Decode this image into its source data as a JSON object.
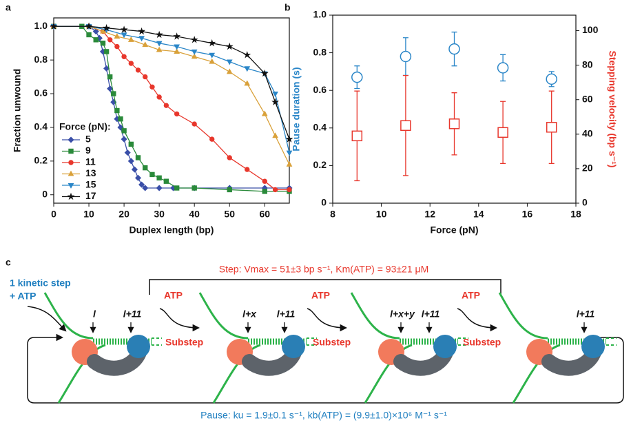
{
  "chart_data": [
    {
      "type": "line",
      "panel_label": "a",
      "xlabel": "Duplex length (bp)",
      "ylabel": "Fraction unwound",
      "xlim": [
        0,
        67
      ],
      "xticks": [
        0,
        10,
        20,
        30,
        40,
        50,
        60
      ],
      "ylim": [
        -0.05,
        1.05
      ],
      "yticks": [
        0,
        0.2,
        0.4,
        0.6,
        0.8,
        {
          "value": 1,
          "label": "1.0"
        }
      ],
      "legend_title": "Force (pN):",
      "legend": "lower-left",
      "series": [
        {
          "name": "5",
          "color": "#3a4fa8",
          "marker": "diamond",
          "x": [
            0,
            10,
            12,
            13,
            14,
            15,
            16,
            17,
            18,
            19,
            20,
            21,
            22,
            23,
            24,
            25,
            26,
            30,
            34,
            40,
            50,
            60,
            67
          ],
          "values": [
            1,
            1,
            0.97,
            0.93,
            0.85,
            0.75,
            0.63,
            0.55,
            0.45,
            0.4,
            0.33,
            0.25,
            0.2,
            0.15,
            0.1,
            0.06,
            0.04,
            0.04,
            0.04,
            0.04,
            0.04,
            0.04,
            0.04
          ]
        },
        {
          "name": "9",
          "color": "#2a8a3a",
          "marker": "square",
          "x": [
            0,
            8,
            10,
            12,
            14,
            15,
            16,
            17,
            18,
            19,
            20,
            22,
            24,
            26,
            28,
            30,
            32,
            35,
            40,
            50,
            60,
            67
          ],
          "values": [
            1,
            1,
            0.95,
            0.92,
            0.9,
            0.85,
            0.7,
            0.6,
            0.5,
            0.45,
            0.38,
            0.3,
            0.22,
            0.16,
            0.12,
            0.1,
            0.08,
            0.04,
            0.04,
            0.03,
            0.02,
            0.02
          ]
        },
        {
          "name": "11",
          "color": "#e8372c",
          "marker": "circle",
          "x": [
            0,
            10,
            14,
            16,
            18,
            20,
            22,
            24,
            26,
            28,
            30,
            32,
            35,
            40,
            45,
            50,
            55,
            60,
            63,
            67
          ],
          "values": [
            1,
            1,
            0.97,
            0.92,
            0.88,
            0.82,
            0.78,
            0.74,
            0.7,
            0.64,
            0.58,
            0.53,
            0.48,
            0.42,
            0.33,
            0.22,
            0.15,
            0.08,
            0.03,
            0.03
          ]
        },
        {
          "name": "13",
          "color": "#d9a13a",
          "marker": "triangle-up",
          "x": [
            0,
            10,
            14,
            18,
            22,
            26,
            30,
            35,
            40,
            45,
            50,
            55,
            60,
            63,
            67
          ],
          "values": [
            1,
            1,
            0.97,
            0.94,
            0.92,
            0.89,
            0.86,
            0.85,
            0.82,
            0.79,
            0.73,
            0.66,
            0.48,
            0.35,
            0.18
          ]
        },
        {
          "name": "15",
          "color": "#2a86c8",
          "marker": "triangle-down",
          "x": [
            0,
            10,
            15,
            20,
            25,
            30,
            35,
            40,
            45,
            50,
            55,
            60,
            63,
            67
          ],
          "values": [
            1,
            1,
            0.98,
            0.95,
            0.93,
            0.9,
            0.88,
            0.85,
            0.83,
            0.79,
            0.75,
            0.72,
            0.6,
            0.25
          ]
        },
        {
          "name": "17",
          "color": "#111111",
          "marker": "star",
          "x": [
            0,
            10,
            15,
            20,
            25,
            30,
            35,
            40,
            45,
            50,
            55,
            60,
            63,
            67
          ],
          "values": [
            1,
            1,
            0.99,
            0.98,
            0.97,
            0.95,
            0.94,
            0.92,
            0.9,
            0.88,
            0.83,
            0.72,
            0.55,
            0.33
          ]
        }
      ]
    },
    {
      "type": "scatter",
      "panel_label": "b",
      "xlabel": "Force (pN)",
      "ylabel": "Pause duration (s)",
      "ylabel_color": "#2a86c8",
      "y2label": "Stepping velocity (bp s⁻¹)",
      "y2label_color": "#e8372c",
      "xlim": [
        8,
        18
      ],
      "xticks": [
        8,
        10,
        12,
        14,
        16,
        18
      ],
      "ylim": [
        0,
        1
      ],
      "yticks": [
        0,
        0.2,
        0.4,
        0.6,
        0.8,
        {
          "value": 1,
          "label": "1.0"
        }
      ],
      "y2lim": [
        0,
        109
      ],
      "y2ticks": [
        0,
        20,
        40,
        60,
        80,
        100
      ],
      "x": [
        9,
        11,
        13,
        15,
        17
      ],
      "series": [
        {
          "color": "#2a86c8",
          "marker": "circle",
          "values": [
            0.67,
            0.78,
            0.82,
            0.72,
            0.66
          ],
          "errors": [
            0.06,
            0.1,
            0.09,
            0.07,
            0.04
          ]
        },
        {
          "color": "#e8372c",
          "marker": "square",
          "axis": "y2",
          "values": [
            39,
            45,
            46,
            41,
            44
          ],
          "errors": [
            26,
            29,
            18,
            18,
            21
          ]
        }
      ]
    }
  ],
  "diagram": {
    "panel_label": "c",
    "kinetic_step": [
      "1 kinetic step",
      "+ ATP"
    ],
    "step": "Step: Vmax = 51±3 bp s⁻¹, Km(ATP) = 93±21 μM",
    "pause": "Pause: ku = 1.9±0.1 s⁻¹, kb(ATP) = (9.9±1.0)×10⁶ M⁻¹ s⁻¹",
    "states": [
      {
        "labels": [
          "l",
          "l+11"
        ]
      },
      {
        "labels": [
          "l+x",
          "l+11"
        ]
      },
      {
        "labels": [
          "l+x+y",
          "l+11"
        ]
      },
      {
        "labels": [
          "l+11"
        ]
      }
    ],
    "transitions": [
      {
        "atp": "ATP",
        "substep": "Substep"
      },
      {
        "atp": "ATP",
        "substep": "Substep"
      },
      {
        "atp": "ATP",
        "substep": "Substep"
      }
    ]
  }
}
